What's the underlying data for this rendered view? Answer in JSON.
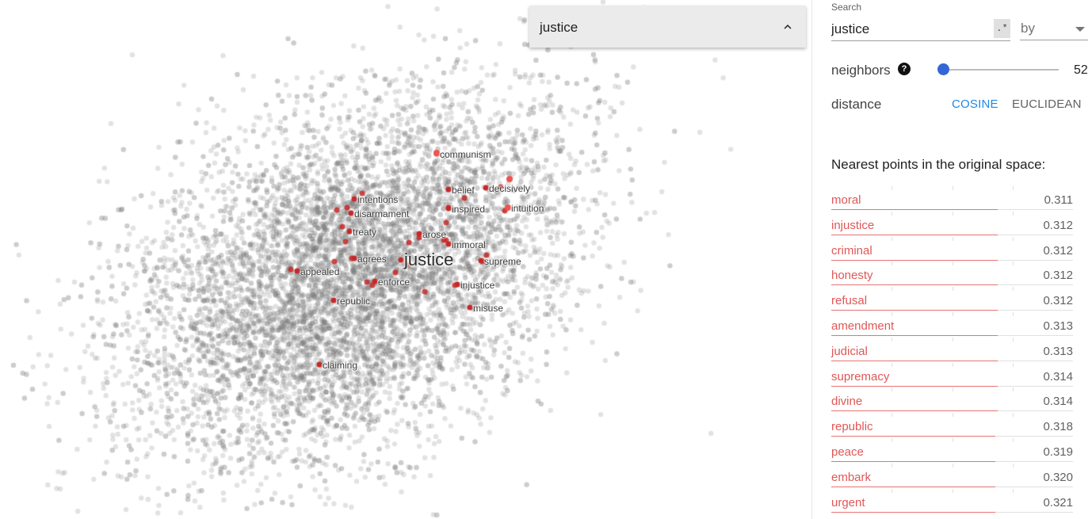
{
  "projection": {
    "focus_point": "justice",
    "labels": [
      "communism",
      "belief",
      "decisively",
      "intentions",
      "disarmament",
      "inspired",
      "intuition",
      "treaty",
      "arose",
      "immoral",
      "agrees",
      "justice",
      "supreme",
      "appealed",
      "enforce",
      "injustice",
      "republic",
      "misuse",
      "claiming"
    ],
    "colors": {
      "background_point": "#7a7a7a",
      "neighbor_point": "#c62828",
      "highlight_point": "#ef5350"
    }
  },
  "selection_card": {
    "title": "justice",
    "icon": "chevron-up-icon"
  },
  "panel": {
    "search_caption": "Search",
    "search_value": "justice",
    "regex_label": ".*",
    "by_label": "by",
    "neighbors_label": "neighbors",
    "help_icon": "?",
    "neighbors_value": "52",
    "neighbors_fraction": 0.0,
    "distance_label": "distance",
    "cosine_label": "COSINE",
    "euclidean_label": "EUCLIDEAN",
    "accent_color": "#1e88e5",
    "nn_heading": "Nearest points in the original space:",
    "neighbors": [
      {
        "word": "moral",
        "value": "0.311",
        "fraction": 0.69
      },
      {
        "word": "injustice",
        "value": "0.312",
        "fraction": 0.69
      },
      {
        "word": "criminal",
        "value": "0.312",
        "fraction": 0.69
      },
      {
        "word": "honesty",
        "value": "0.312",
        "fraction": 0.69
      },
      {
        "word": "refusal",
        "value": "0.312",
        "fraction": 0.69
      },
      {
        "word": "amendment",
        "value": "0.313",
        "fraction": 0.69
      },
      {
        "word": "judicial",
        "value": "0.313",
        "fraction": 0.69
      },
      {
        "word": "supremacy",
        "value": "0.314",
        "fraction": 0.69
      },
      {
        "word": "divine",
        "value": "0.314",
        "fraction": 0.69
      },
      {
        "word": "republic",
        "value": "0.318",
        "fraction": 0.68
      },
      {
        "word": "peace",
        "value": "0.319",
        "fraction": 0.68
      },
      {
        "word": "embark",
        "value": "0.320",
        "fraction": 0.68
      },
      {
        "word": "urgent",
        "value": "0.321",
        "fraction": 0.68
      }
    ]
  }
}
